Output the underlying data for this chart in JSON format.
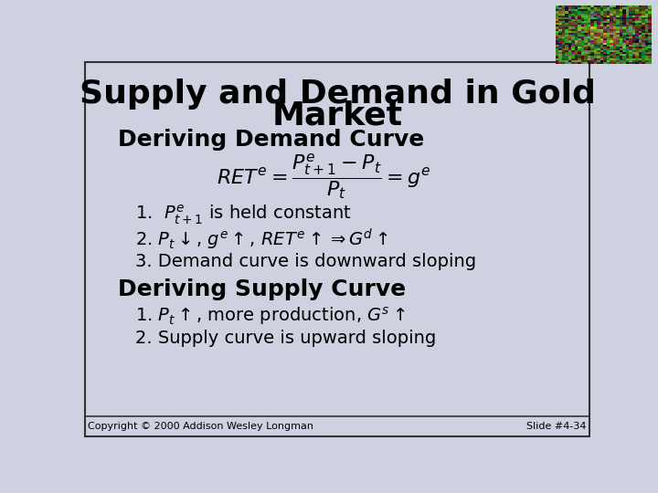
{
  "title_line1": "Supply and Demand in Gold",
  "title_line2": "Market",
  "bg_color": "#cdd1e0",
  "text_color": "#000000",
  "title_fontsize": 26,
  "section_fontsize": 18,
  "body_fontsize": 14,
  "formula_fontsize": 16,
  "small_fontsize": 8,
  "copyright": "Copyright © 2000 Addison Wesley Longman",
  "slide_num": "Slide #4-34",
  "border_color": "#333333"
}
